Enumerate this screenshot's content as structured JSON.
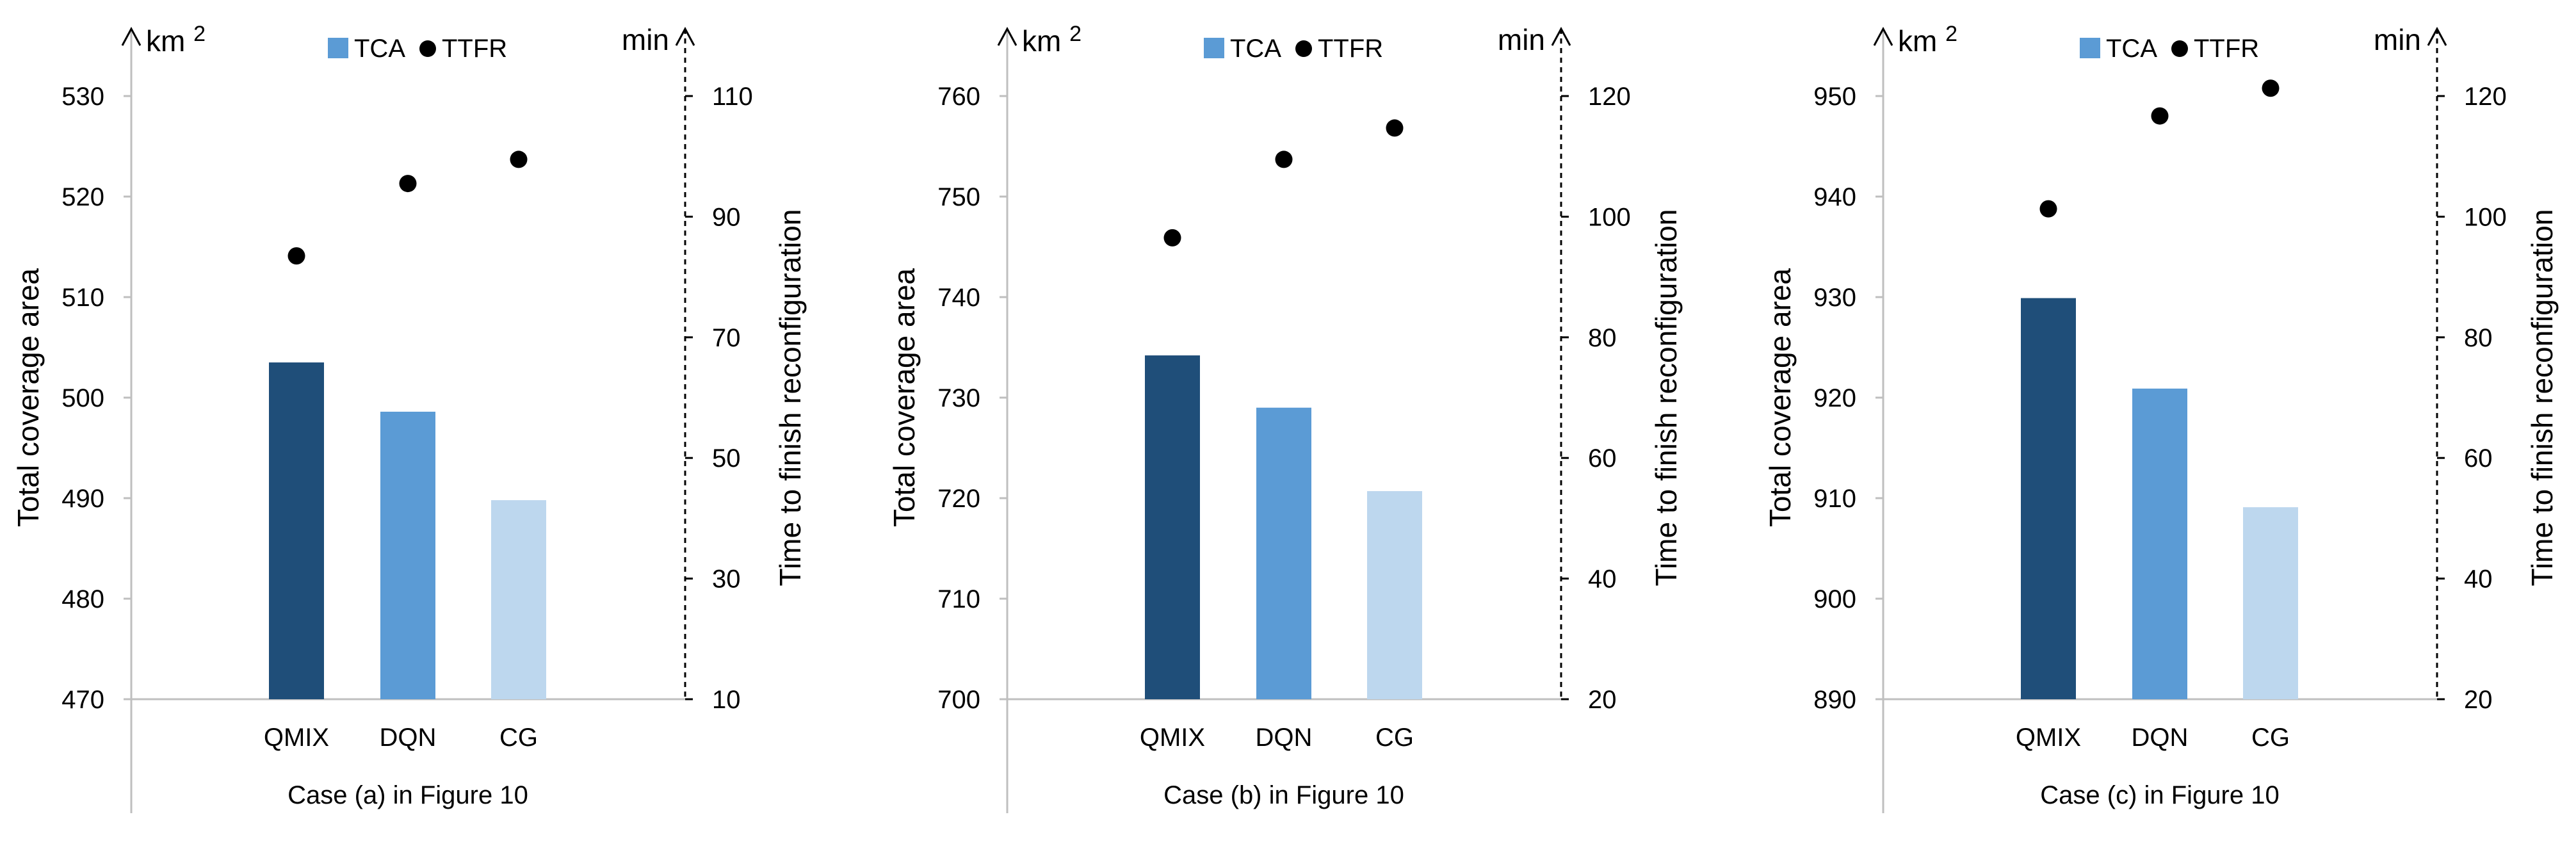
{
  "legend": {
    "bar_label": "TCA",
    "dot_label": "TTFR"
  },
  "colors": {
    "bar1": "#1f4e79",
    "bar2": "#5b9bd5",
    "bar3": "#bdd7ee",
    "dot": "#000000",
    "axis": "#000000"
  },
  "chart_data": [
    {
      "type": "bar",
      "caption": "Case (a) in Figure 10",
      "categories": [
        "QMIX",
        "DQN",
        "CG"
      ],
      "series": [
        {
          "name": "TCA",
          "axis": "left",
          "values": [
            503.5,
            498.6,
            489.8
          ]
        },
        {
          "name": "TTFR",
          "axis": "right",
          "type": "scatter",
          "values": [
            83.5,
            95.5,
            99.5
          ]
        }
      ],
      "left_axis": {
        "unit_base": "km",
        "unit_exp": "2",
        "label": "Total coverage area",
        "ylim": [
          470,
          530
        ],
        "ticks": [
          470,
          480,
          490,
          500,
          510,
          520,
          530
        ]
      },
      "right_axis": {
        "unit": "min",
        "label": "Time to finish reconfiguration",
        "ylim": [
          10,
          110
        ],
        "ticks": [
          10,
          30,
          50,
          70,
          90,
          110
        ]
      }
    },
    {
      "type": "bar",
      "caption": "Case (b) in Figure 10",
      "categories": [
        "QMIX",
        "DQN",
        "CG"
      ],
      "series": [
        {
          "name": "TCA",
          "axis": "left",
          "values": [
            734.2,
            729.0,
            720.7
          ]
        },
        {
          "name": "TTFR",
          "axis": "right",
          "type": "scatter",
          "values": [
            96.5,
            109.5,
            114.7
          ]
        }
      ],
      "left_axis": {
        "unit_base": "km",
        "unit_exp": "2",
        "label": "Total coverage area",
        "ylim": [
          700,
          760
        ],
        "ticks": [
          700,
          710,
          720,
          730,
          740,
          750,
          760
        ]
      },
      "right_axis": {
        "unit": "min",
        "label": "Time to finish reconfiguration",
        "ylim": [
          20,
          120
        ],
        "ticks": [
          20,
          40,
          60,
          80,
          100,
          120
        ]
      }
    },
    {
      "type": "bar",
      "caption": "Case (c) in Figure 10",
      "categories": [
        "QMIX",
        "DQN",
        "CG"
      ],
      "series": [
        {
          "name": "TCA",
          "axis": "left",
          "values": [
            929.9,
            920.9,
            909.1
          ]
        },
        {
          "name": "TTFR",
          "axis": "right",
          "type": "scatter",
          "values": [
            101.3,
            116.7,
            121.3
          ]
        }
      ],
      "left_axis": {
        "unit_base": "km",
        "unit_exp": "2",
        "label": "Total coverage area",
        "ylim": [
          890,
          950
        ],
        "ticks": [
          890,
          900,
          910,
          920,
          930,
          940,
          950
        ]
      },
      "right_axis": {
        "unit": "min",
        "label": "Time to finish reconfiguration",
        "ylim": [
          20,
          120
        ],
        "ticks": [
          20,
          40,
          60,
          80,
          100,
          120
        ]
      }
    }
  ]
}
